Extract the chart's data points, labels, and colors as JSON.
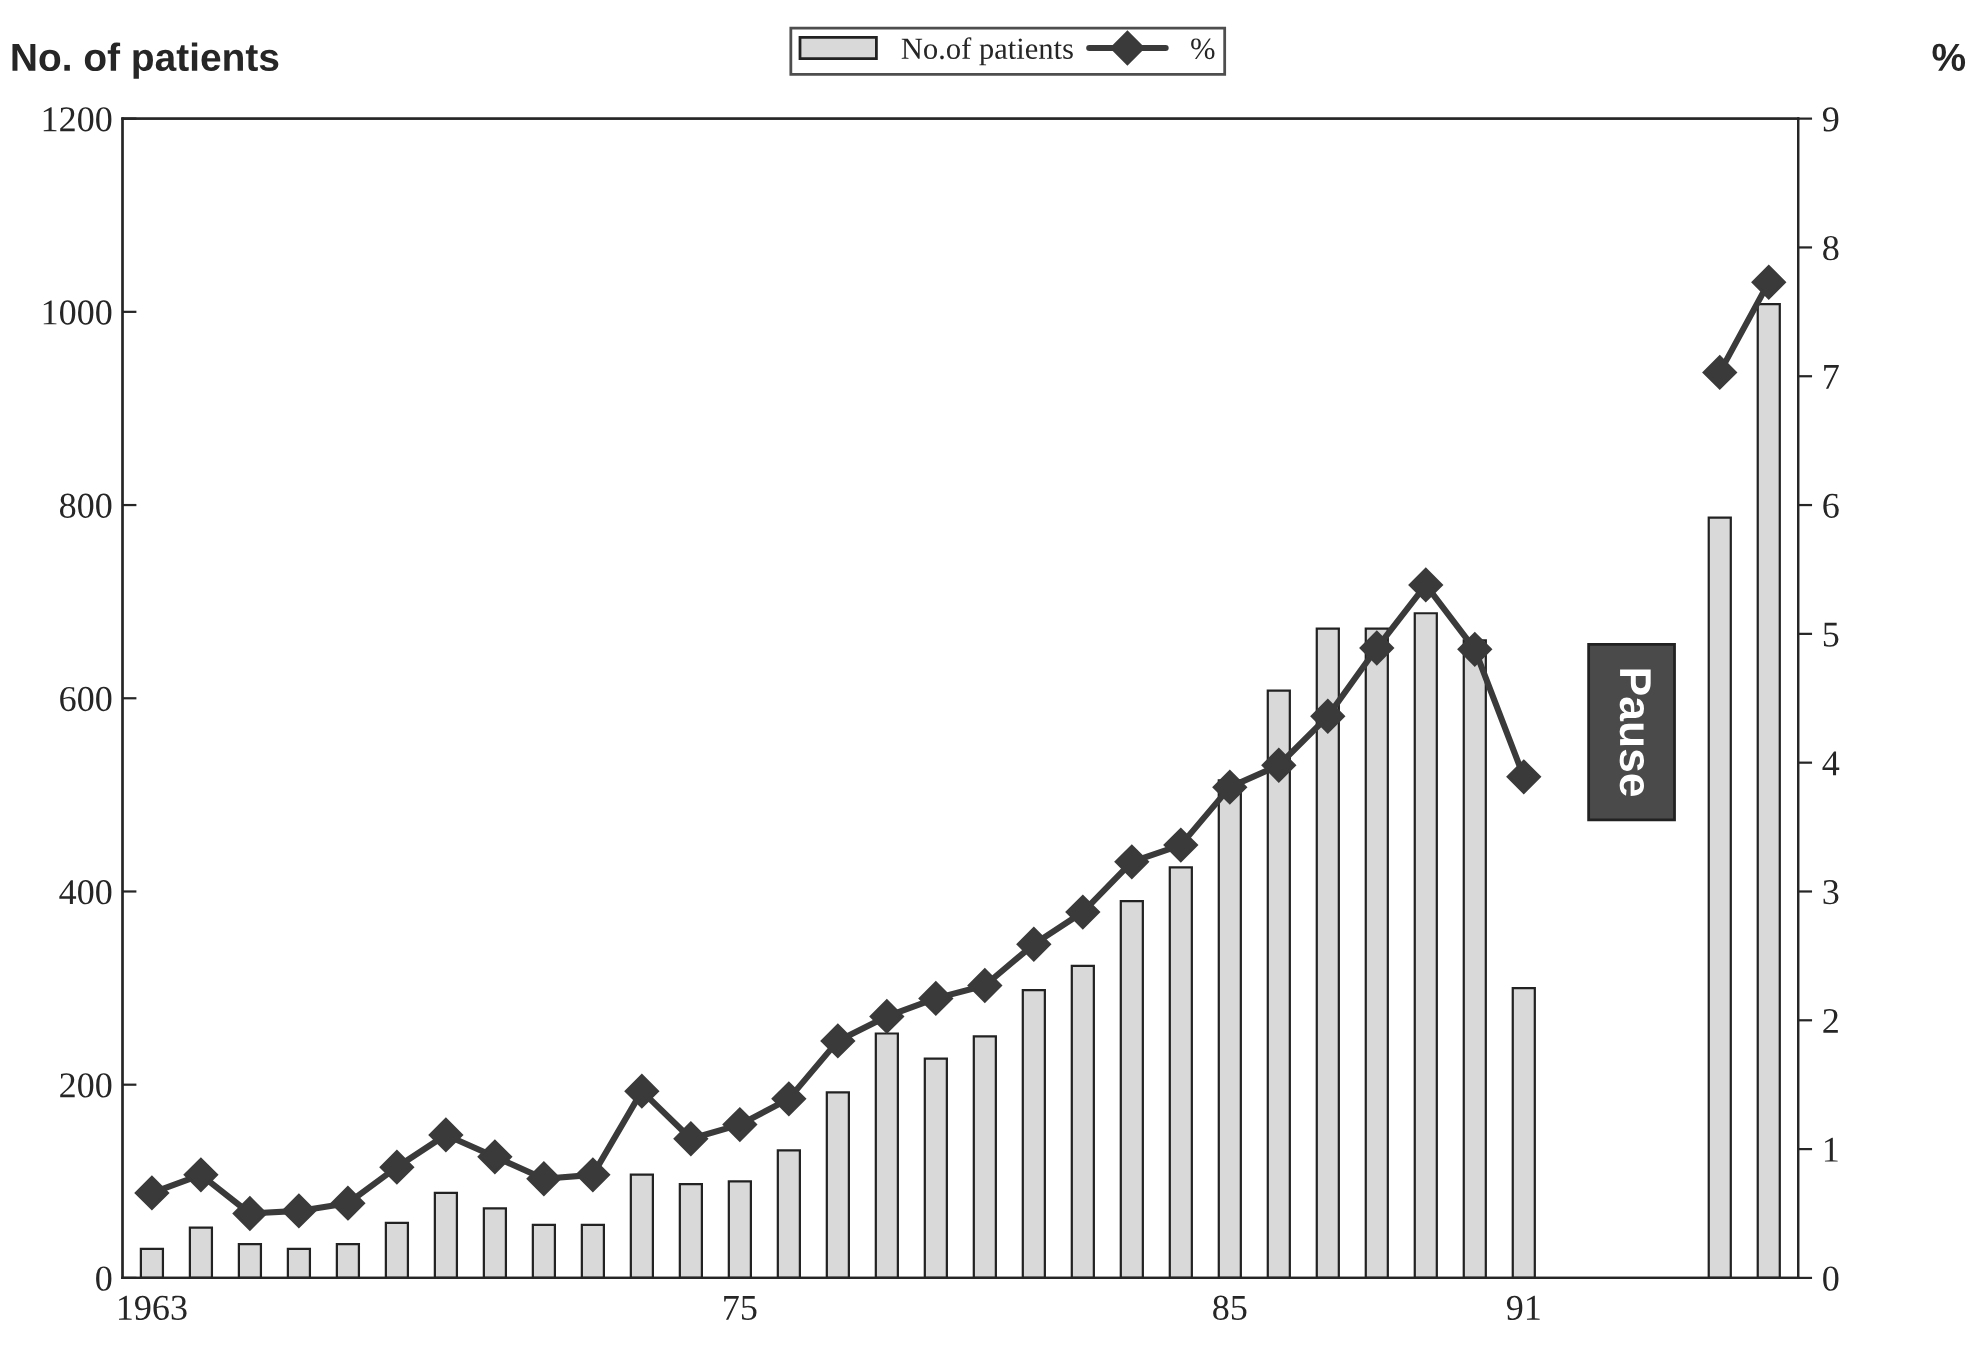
{
  "chart_data": {
    "type": "bar",
    "ylabel": "No. of patients",
    "y2label": "%",
    "categories": [
      "1963",
      null,
      null,
      null,
      null,
      null,
      null,
      null,
      null,
      null,
      null,
      null,
      "75",
      null,
      null,
      null,
      null,
      null,
      null,
      null,
      null,
      null,
      "85",
      null,
      null,
      null,
      null,
      null,
      "91",
      null,
      null,
      null,
      null,
      null
    ],
    "series": [
      {
        "name": "No.of patients",
        "color": "#d9d9d9",
        "values": [
          30,
          52,
          35,
          30,
          35,
          57,
          88,
          72,
          55,
          55,
          107,
          97,
          100,
          132,
          192,
          253,
          227,
          250,
          298,
          323,
          390,
          425,
          515,
          608,
          672,
          672,
          688,
          660,
          300,
          null,
          null,
          null,
          787,
          1008
        ]
      },
      {
        "name": "%",
        "type": "line",
        "axis": "y2",
        "color": "#3a3a3a",
        "marker": "diamond",
        "values": [
          0.66,
          0.8,
          0.5,
          0.52,
          0.58,
          0.86,
          1.11,
          0.94,
          0.77,
          0.8,
          1.45,
          1.08,
          1.19,
          1.39,
          1.84,
          2.03,
          2.17,
          2.27,
          2.59,
          2.84,
          3.23,
          3.36,
          3.81,
          3.98,
          4.36,
          4.89,
          5.38,
          4.88,
          3.89,
          null,
          null,
          null,
          7.03,
          7.73
        ]
      }
    ],
    "ylim": [
      0,
      1200
    ],
    "yticks": [
      0,
      200,
      400,
      600,
      800,
      1000,
      1200
    ],
    "y2lim": [
      0,
      9
    ],
    "y2ticks": [
      0,
      1,
      2,
      3,
      4,
      5,
      6,
      7,
      8,
      9
    ],
    "annotations": [
      "Pause"
    ],
    "legend": "top",
    "grid": false
  }
}
